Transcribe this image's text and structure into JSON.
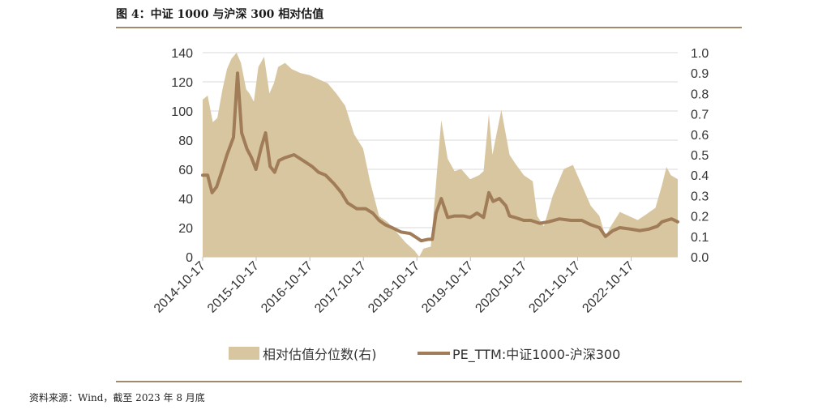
{
  "figure": {
    "title": "图 4：中证 1000 与沪深 300 相对估值",
    "source": "资料来源：Wind，截至 2023 年 8 月底"
  },
  "chart_data": {
    "type": "area",
    "x_tick_labels": [
      "2014-10-17",
      "2015-10-17",
      "2016-10-17",
      "2017-10-17",
      "2018-10-17",
      "2019-10-17",
      "2020-10-17",
      "2021-10-17",
      "2022-10-17"
    ],
    "x_range": [
      "2014-10-17",
      "2023-08-31"
    ],
    "y_left": {
      "ylim": [
        0,
        140
      ],
      "ticks": [
        0,
        20,
        40,
        60,
        80,
        100,
        120,
        140
      ]
    },
    "y_right": {
      "ylim": [
        0.0,
        1.0
      ],
      "ticks": [
        "0.0",
        "0.1",
        "0.2",
        "0.3",
        "0.4",
        "0.5",
        "0.6",
        "0.7",
        "0.8",
        "0.9",
        "1.0"
      ]
    },
    "grid": true,
    "legend_position": "bottom",
    "series": [
      {
        "name": "相对估值分位数(右)",
        "kind": "area",
        "axis": "right",
        "color": "#d8c6a0",
        "points": [
          [
            "2014-10-17",
            0.77
          ],
          [
            "2014-11-20",
            0.79
          ],
          [
            "2014-12-25",
            0.66
          ],
          [
            "2015-01-25",
            0.68
          ],
          [
            "2015-03-01",
            0.82
          ],
          [
            "2015-04-01",
            0.92
          ],
          [
            "2015-05-01",
            0.97
          ],
          [
            "2015-06-05",
            1.0
          ],
          [
            "2015-07-05",
            0.95
          ],
          [
            "2015-08-10",
            0.82
          ],
          [
            "2015-09-01",
            0.8
          ],
          [
            "2015-10-01",
            0.76
          ],
          [
            "2015-11-01",
            0.93
          ],
          [
            "2015-12-10",
            0.98
          ],
          [
            "2016-01-15",
            0.8
          ],
          [
            "2016-02-15",
            0.85
          ],
          [
            "2016-03-15",
            0.93
          ],
          [
            "2016-05-01",
            0.95
          ],
          [
            "2016-06-15",
            0.92
          ],
          [
            "2016-08-15",
            0.9
          ],
          [
            "2016-10-15",
            0.89
          ],
          [
            "2016-12-15",
            0.87
          ],
          [
            "2017-02-15",
            0.85
          ],
          [
            "2017-04-15",
            0.8
          ],
          [
            "2017-06-15",
            0.74
          ],
          [
            "2017-08-15",
            0.6
          ],
          [
            "2017-10-15",
            0.53
          ],
          [
            "2017-12-01",
            0.37
          ],
          [
            "2018-02-01",
            0.2
          ],
          [
            "2018-04-01",
            0.17
          ],
          [
            "2018-06-01",
            0.12
          ],
          [
            "2018-08-01",
            0.07
          ],
          [
            "2018-10-01",
            0.03
          ],
          [
            "2018-11-01",
            0.0
          ],
          [
            "2018-12-01",
            0.04
          ],
          [
            "2019-01-20",
            0.05
          ],
          [
            "2019-02-20",
            0.32
          ],
          [
            "2019-04-01",
            0.67
          ],
          [
            "2019-05-15",
            0.48
          ],
          [
            "2019-07-01",
            0.42
          ],
          [
            "2019-08-15",
            0.43
          ],
          [
            "2019-10-15",
            0.38
          ],
          [
            "2019-12-15",
            0.4
          ],
          [
            "2020-01-15",
            0.42
          ],
          [
            "2020-02-20",
            0.7
          ],
          [
            "2020-03-15",
            0.5
          ],
          [
            "2020-05-15",
            0.72
          ],
          [
            "2020-07-10",
            0.5
          ],
          [
            "2020-08-15",
            0.46
          ],
          [
            "2020-10-15",
            0.4
          ],
          [
            "2020-12-15",
            0.37
          ],
          [
            "2021-01-15",
            0.2
          ],
          [
            "2021-03-01",
            0.15
          ],
          [
            "2021-05-01",
            0.3
          ],
          [
            "2021-07-15",
            0.43
          ],
          [
            "2021-09-15",
            0.45
          ],
          [
            "2021-11-15",
            0.35
          ],
          [
            "2022-01-15",
            0.25
          ],
          [
            "2022-03-15",
            0.2
          ],
          [
            "2022-04-25",
            0.1
          ],
          [
            "2022-06-01",
            0.15
          ],
          [
            "2022-08-01",
            0.22
          ],
          [
            "2022-10-01",
            0.2
          ],
          [
            "2022-12-01",
            0.18
          ],
          [
            "2023-02-01",
            0.21
          ],
          [
            "2023-04-01",
            0.24
          ],
          [
            "2023-05-15",
            0.35
          ],
          [
            "2023-06-15",
            0.44
          ],
          [
            "2023-07-15",
            0.4
          ],
          [
            "2023-08-31",
            0.38
          ]
        ]
      },
      {
        "name": "PE_TTM:中证1000-沪深300",
        "kind": "line",
        "axis": "left",
        "color": "#a07c58",
        "points": [
          [
            "2014-10-17",
            56
          ],
          [
            "2014-11-20",
            56
          ],
          [
            "2014-12-20",
            44
          ],
          [
            "2015-01-20",
            48
          ],
          [
            "2015-03-01",
            60
          ],
          [
            "2015-04-01",
            70
          ],
          [
            "2015-05-15",
            82
          ],
          [
            "2015-06-12",
            126
          ],
          [
            "2015-07-10",
            85
          ],
          [
            "2015-08-15",
            74
          ],
          [
            "2015-09-15",
            68
          ],
          [
            "2015-10-15",
            60
          ],
          [
            "2015-11-20",
            75
          ],
          [
            "2015-12-20",
            85
          ],
          [
            "2016-01-20",
            62
          ],
          [
            "2016-02-20",
            58
          ],
          [
            "2016-03-20",
            66
          ],
          [
            "2016-05-01",
            68
          ],
          [
            "2016-07-01",
            70
          ],
          [
            "2016-09-01",
            66
          ],
          [
            "2016-11-01",
            62
          ],
          [
            "2016-12-15",
            58
          ],
          [
            "2017-02-01",
            56
          ],
          [
            "2017-04-01",
            50
          ],
          [
            "2017-05-20",
            44
          ],
          [
            "2017-07-01",
            37
          ],
          [
            "2017-09-01",
            33
          ],
          [
            "2017-11-01",
            33
          ],
          [
            "2017-12-20",
            30
          ],
          [
            "2018-02-01",
            25
          ],
          [
            "2018-03-15",
            22
          ],
          [
            "2018-05-01",
            20
          ],
          [
            "2018-07-01",
            17
          ],
          [
            "2018-09-01",
            16
          ],
          [
            "2018-10-17",
            13
          ],
          [
            "2018-11-15",
            11
          ],
          [
            "2019-01-01",
            12
          ],
          [
            "2019-01-30",
            12
          ],
          [
            "2019-02-25",
            30
          ],
          [
            "2019-04-01",
            40
          ],
          [
            "2019-05-15",
            27
          ],
          [
            "2019-07-01",
            28
          ],
          [
            "2019-09-01",
            28
          ],
          [
            "2019-10-15",
            27
          ],
          [
            "2019-12-01",
            30
          ],
          [
            "2020-01-15",
            27
          ],
          [
            "2020-02-20",
            44
          ],
          [
            "2020-03-20",
            38
          ],
          [
            "2020-05-01",
            40
          ],
          [
            "2020-06-15",
            35
          ],
          [
            "2020-07-10",
            28
          ],
          [
            "2020-08-15",
            27
          ],
          [
            "2020-10-15",
            25
          ],
          [
            "2020-12-01",
            25
          ],
          [
            "2021-02-01",
            23
          ],
          [
            "2021-04-01",
            24
          ],
          [
            "2021-06-15",
            26
          ],
          [
            "2021-09-01",
            25
          ],
          [
            "2021-11-15",
            25
          ],
          [
            "2022-01-15",
            22
          ],
          [
            "2022-03-15",
            20
          ],
          [
            "2022-04-25",
            14
          ],
          [
            "2022-06-15",
            18
          ],
          [
            "2022-08-01",
            20
          ],
          [
            "2022-10-15",
            19
          ],
          [
            "2022-12-15",
            18
          ],
          [
            "2023-02-15",
            19
          ],
          [
            "2023-04-15",
            21
          ],
          [
            "2023-05-15",
            24
          ],
          [
            "2023-06-15",
            25
          ],
          [
            "2023-07-20",
            26
          ],
          [
            "2023-08-31",
            24
          ]
        ]
      }
    ]
  }
}
